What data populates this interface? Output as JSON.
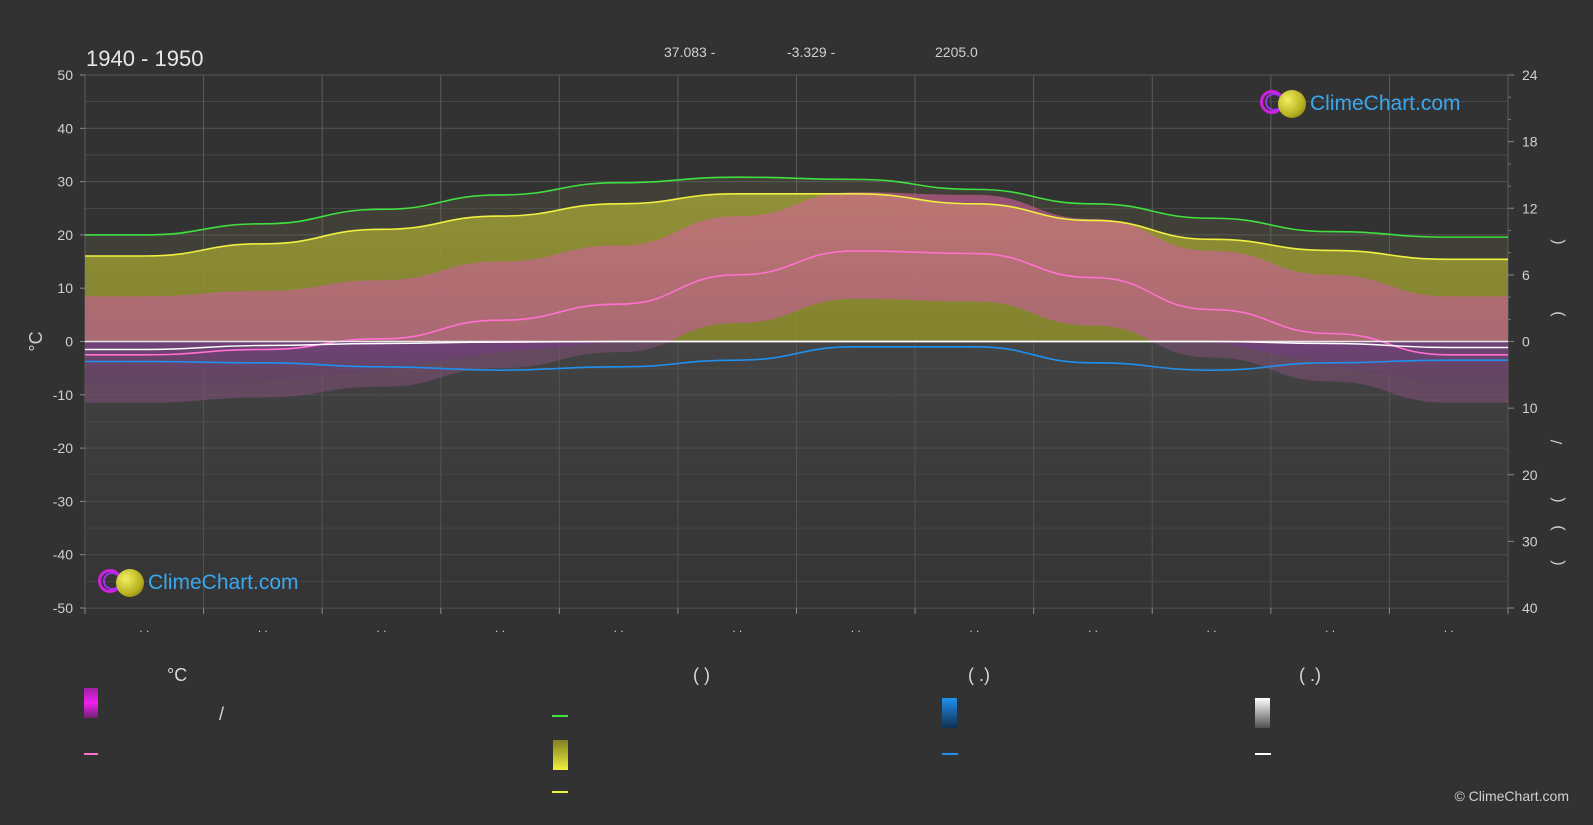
{
  "header": {
    "period": "1940 - 1950",
    "latitude": "37.083 -",
    "longitude": "-3.329 -",
    "elevation": "2205.0"
  },
  "axes": {
    "left_unit": "°C",
    "left_ticks": [
      "50",
      "40",
      "30",
      "20",
      "10",
      "0",
      "-10",
      "-20",
      "-30",
      "-40",
      "-50"
    ],
    "right_ticks_top": [
      "24",
      "18",
      "12",
      "6",
      "0"
    ],
    "right_ticks_bottom": [
      "10",
      "20",
      "30",
      "40"
    ],
    "right_label_glyphs": [
      "(",
      ")",
      "/",
      "(",
      ")",
      "("
    ],
    "month_labels": [
      ". .",
      ". .",
      ". .",
      ". .",
      ". .",
      ". .",
      ". .",
      ". .",
      ". .",
      ". .",
      ". .",
      ". ."
    ]
  },
  "legend": {
    "col1_head": "°C",
    "col2_head": "(          )",
    "col3_head": "(   .)",
    "col4_head": "(   .)",
    "slash": "/",
    "colors": {
      "temp_range": "#e020e0",
      "temp_mean": "#ff70d0",
      "daylight": "#40e040",
      "sunshine_band": "#e0e040",
      "sunshine_line": "#f0f040",
      "rain_band": "#1e88e5",
      "rain_line": "#2090f0",
      "snow_band": "#f0f0f0",
      "snow_line": "#ffffff"
    }
  },
  "watermark": "ClimeChart.com",
  "copyright": "© ClimeChart.com",
  "chart_data": {
    "type": "line",
    "title": "1940 - 1950",
    "ylabel": "°C",
    "ylim": [
      -50,
      50
    ],
    "right_axis_ylim_hours": [
      0,
      24
    ],
    "right_axis_ylim_precip_mm": [
      0,
      40
    ],
    "x_months": 12,
    "series": [
      {
        "axis": "hours",
        "color": "#40e040",
        "values": [
          9.6,
          10.6,
          11.9,
          13.2,
          14.3,
          14.8,
          14.6,
          13.7,
          12.4,
          11.1,
          9.9,
          9.4
        ]
      },
      {
        "axis": "hours",
        "color": "#f0f040",
        "values": [
          7.7,
          8.8,
          10.1,
          11.3,
          12.4,
          13.3,
          13.3,
          12.4,
          10.9,
          9.2,
          8.2,
          7.4
        ]
      },
      {
        "axis": "temperature",
        "color": "#ff70d0",
        "values": [
          -2.5,
          -1.5,
          0.5,
          4.0,
          7.0,
          12.5,
          17.0,
          16.5,
          12.0,
          6.0,
          1.5,
          -2.5
        ]
      },
      {
        "axis": "precip_mm",
        "color": "#2090f0",
        "values": [
          3.0,
          3.2,
          3.8,
          4.3,
          3.8,
          2.8,
          0.8,
          0.8,
          3.2,
          4.3,
          3.2,
          2.8
        ]
      },
      {
        "axis": "precip_mm",
        "color": "#ffffff",
        "values": [
          1.2,
          0.6,
          0.3,
          0.1,
          0.0,
          0.0,
          0.0,
          0.0,
          0.0,
          0.0,
          0.3,
          0.9
        ]
      }
    ]
  }
}
